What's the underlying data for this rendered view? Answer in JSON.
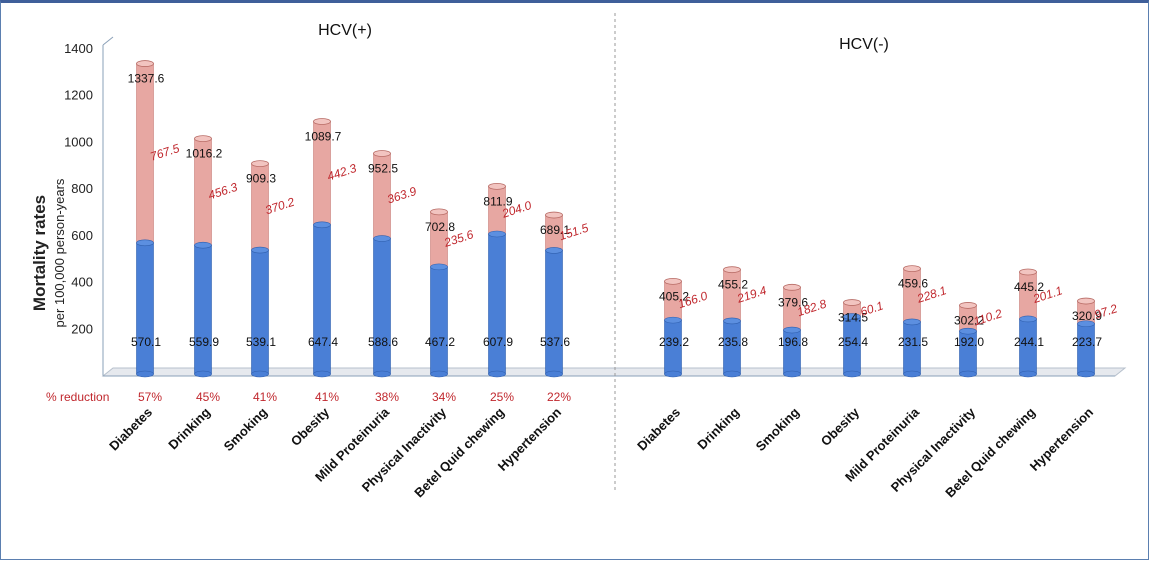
{
  "chart_data": {
    "type": "bar",
    "stacked": true,
    "y_axis_label": "Mortality  rates",
    "y_axis_sublabel": "per 100,000 person-years",
    "yticks": [
      200,
      400,
      600,
      800,
      1000,
      1200,
      1400
    ],
    "ylim": [
      0,
      1400
    ],
    "reduction_label": "% reduction",
    "colors": {
      "bottom": "#4a7fd6",
      "top": "#e7a7a2",
      "reduction_text": "#c0272d"
    },
    "panels": [
      {
        "title": "HCV(+)",
        "categories": [
          "Diabetes",
          "Drinking",
          "Smoking",
          "Obesity",
          "Mild Proteinuria",
          "Physical Inactivity",
          "Betel Quid chewing",
          "Hypertension"
        ],
        "totals": [
          "1337.6",
          "1016.2",
          "909.3",
          "1089.7",
          "952.5",
          "702.8",
          "811.9",
          "689.1"
        ],
        "bases": [
          "570.1",
          "559.9",
          "539.1",
          "647.4",
          "588.6",
          "467.2",
          "607.9",
          "537.6"
        ],
        "differences": [
          "767.5",
          "456.3",
          "370.2",
          "442.3",
          "363.9",
          "235.6",
          "204.0",
          "151.5"
        ],
        "reductions": [
          "57%",
          "45%",
          "41%",
          "41%",
          "38%",
          "34%",
          "25%",
          "22%"
        ]
      },
      {
        "title": "HCV(-)",
        "categories": [
          "Diabetes",
          "Drinking",
          "Smoking",
          "Obesity",
          "Mild Proteinuria",
          "Physical Inactivity",
          "Betel Quid chewing",
          "Hypertension"
        ],
        "totals": [
          "405.2",
          "455.2",
          "379.6",
          "314.5",
          "459.6",
          "302.2",
          "445.2",
          "320.9"
        ],
        "bases": [
          "239.2",
          "235.8",
          "196.8",
          "254.4",
          "231.5",
          "192.0",
          "244.1",
          "223.7"
        ],
        "differences": [
          "166.0",
          "219.4",
          "182.8",
          "60.1",
          "228.1",
          "110.2",
          "201.1",
          "97.2"
        ],
        "reductions": []
      }
    ]
  }
}
